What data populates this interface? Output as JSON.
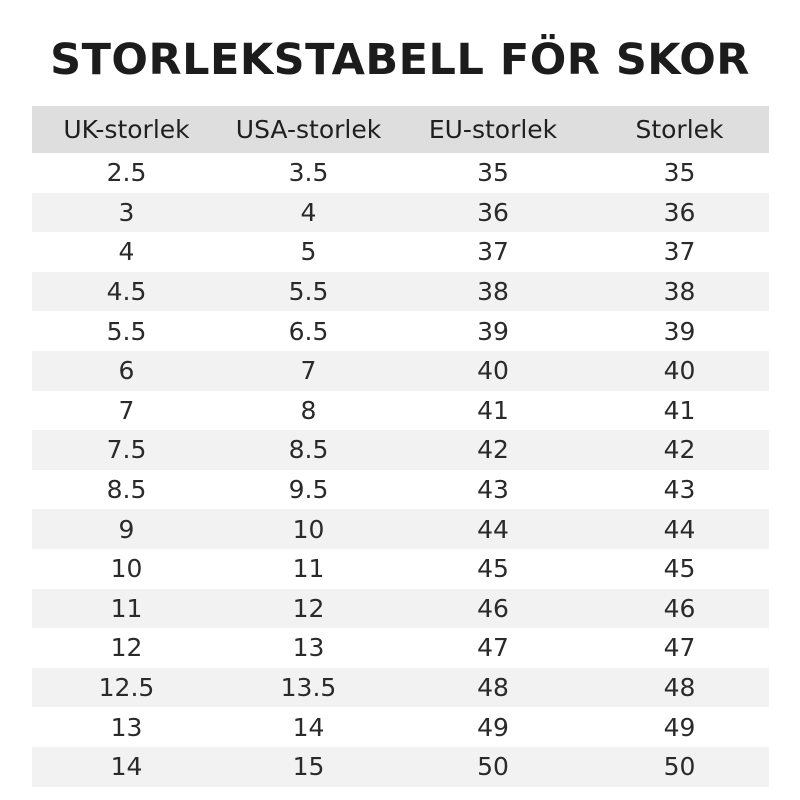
{
  "title": "STORLEKSTABELL FÖR SKOR",
  "table": {
    "headers": [
      "UK-storlek",
      "USA-storlek",
      "EU-storlek",
      "Storlek"
    ],
    "rows": [
      [
        "2.5",
        "3.5",
        "35",
        "35"
      ],
      [
        "3",
        "4",
        "36",
        "36"
      ],
      [
        "4",
        "5",
        "37",
        "37"
      ],
      [
        "4.5",
        "5.5",
        "38",
        "38"
      ],
      [
        "5.5",
        "6.5",
        "39",
        "39"
      ],
      [
        "6",
        "7",
        "40",
        "40"
      ],
      [
        "7",
        "8",
        "41",
        "41"
      ],
      [
        "7.5",
        "8.5",
        "42",
        "42"
      ],
      [
        "8.5",
        "9.5",
        "43",
        "43"
      ],
      [
        "9",
        "10",
        "44",
        "44"
      ],
      [
        "10",
        "11",
        "45",
        "45"
      ],
      [
        "11",
        "12",
        "46",
        "46"
      ],
      [
        "12",
        "13",
        "47",
        "47"
      ],
      [
        "12.5",
        "13.5",
        "48",
        "48"
      ],
      [
        "13",
        "14",
        "49",
        "49"
      ],
      [
        "14",
        "15",
        "50",
        "50"
      ]
    ]
  },
  "colors": {
    "header_background": "#dedede",
    "stripe_background": "#f2f2f2",
    "text": "#1f1f1f"
  }
}
